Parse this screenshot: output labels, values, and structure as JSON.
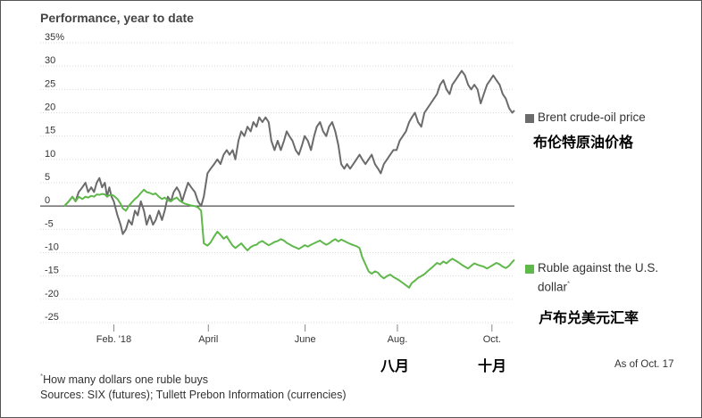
{
  "chart_data": {
    "type": "line",
    "title": "Performance, year to date",
    "ylim": [
      -25,
      35
    ],
    "y_ticks": [
      "35%",
      "30",
      "25",
      "20",
      "15",
      "10",
      "5",
      "0",
      "-5",
      "-10",
      "-15",
      "-20",
      "-25"
    ],
    "y_tick_values": [
      35,
      30,
      25,
      20,
      15,
      10,
      5,
      0,
      -5,
      -10,
      -15,
      -20,
      -25
    ],
    "x_ticks": [
      {
        "label": "Feb. '18",
        "t": 0.11
      },
      {
        "label": "April",
        "t": 0.32
      },
      {
        "label": "June",
        "t": 0.535
      },
      {
        "label": "Aug.",
        "t": 0.74
      },
      {
        "label": "Oct.",
        "t": 0.95
      }
    ],
    "series": [
      {
        "name": "Brent crude-oil price",
        "color": "#6b6b6b",
        "points": [
          [
            0.0,
            0
          ],
          [
            0.01,
            1
          ],
          [
            0.018,
            2
          ],
          [
            0.025,
            1
          ],
          [
            0.032,
            3
          ],
          [
            0.04,
            4
          ],
          [
            0.047,
            5
          ],
          [
            0.053,
            3
          ],
          [
            0.06,
            4
          ],
          [
            0.066,
            3
          ],
          [
            0.072,
            5
          ],
          [
            0.078,
            6
          ],
          [
            0.084,
            4
          ],
          [
            0.09,
            5
          ],
          [
            0.095,
            2
          ],
          [
            0.1,
            4
          ],
          [
            0.105,
            2
          ],
          [
            0.11,
            1
          ],
          [
            0.118,
            -2
          ],
          [
            0.125,
            -4
          ],
          [
            0.13,
            -6
          ],
          [
            0.137,
            -5
          ],
          [
            0.143,
            -3
          ],
          [
            0.15,
            -4
          ],
          [
            0.157,
            -1
          ],
          [
            0.163,
            -2
          ],
          [
            0.17,
            1
          ],
          [
            0.177,
            -1
          ],
          [
            0.183,
            -4
          ],
          [
            0.19,
            -2
          ],
          [
            0.197,
            -4
          ],
          [
            0.203,
            -3
          ],
          [
            0.21,
            -1
          ],
          [
            0.217,
            -3
          ],
          [
            0.223,
            -1
          ],
          [
            0.23,
            2
          ],
          [
            0.237,
            1
          ],
          [
            0.243,
            3
          ],
          [
            0.25,
            4
          ],
          [
            0.256,
            3
          ],
          [
            0.262,
            1
          ],
          [
            0.268,
            3
          ],
          [
            0.275,
            5
          ],
          [
            0.282,
            4
          ],
          [
            0.29,
            3
          ],
          [
            0.297,
            1
          ],
          [
            0.304,
            0
          ],
          [
            0.31,
            2
          ],
          [
            0.318,
            7
          ],
          [
            0.325,
            8
          ],
          [
            0.333,
            9
          ],
          [
            0.34,
            10
          ],
          [
            0.347,
            9
          ],
          [
            0.354,
            11
          ],
          [
            0.361,
            12
          ],
          [
            0.367,
            11
          ],
          [
            0.374,
            12
          ],
          [
            0.38,
            10
          ],
          [
            0.387,
            14
          ],
          [
            0.393,
            16
          ],
          [
            0.4,
            15
          ],
          [
            0.407,
            17
          ],
          [
            0.414,
            16
          ],
          [
            0.42,
            18
          ],
          [
            0.427,
            17
          ],
          [
            0.433,
            19
          ],
          [
            0.44,
            18
          ],
          [
            0.447,
            19
          ],
          [
            0.454,
            18
          ],
          [
            0.46,
            14
          ],
          [
            0.467,
            12
          ],
          [
            0.474,
            14
          ],
          [
            0.481,
            12
          ],
          [
            0.488,
            14
          ],
          [
            0.494,
            16
          ],
          [
            0.5,
            15
          ],
          [
            0.507,
            14
          ],
          [
            0.514,
            12
          ],
          [
            0.521,
            11
          ],
          [
            0.528,
            13
          ],
          [
            0.534,
            15
          ],
          [
            0.541,
            14
          ],
          [
            0.548,
            12
          ],
          [
            0.555,
            15
          ],
          [
            0.561,
            17
          ],
          [
            0.568,
            18
          ],
          [
            0.575,
            16
          ],
          [
            0.582,
            15
          ],
          [
            0.588,
            17
          ],
          [
            0.595,
            18
          ],
          [
            0.602,
            16
          ],
          [
            0.609,
            13
          ],
          [
            0.615,
            9
          ],
          [
            0.622,
            8
          ],
          [
            0.628,
            9
          ],
          [
            0.635,
            8
          ],
          [
            0.642,
            9
          ],
          [
            0.649,
            10
          ],
          [
            0.656,
            11
          ],
          [
            0.662,
            10
          ],
          [
            0.669,
            9
          ],
          [
            0.676,
            10
          ],
          [
            0.683,
            11
          ],
          [
            0.69,
            9
          ],
          [
            0.697,
            8
          ],
          [
            0.703,
            7
          ],
          [
            0.71,
            9
          ],
          [
            0.717,
            10
          ],
          [
            0.724,
            11
          ],
          [
            0.731,
            12
          ],
          [
            0.738,
            12
          ],
          [
            0.745,
            14
          ],
          [
            0.752,
            15
          ],
          [
            0.759,
            16
          ],
          [
            0.766,
            18
          ],
          [
            0.772,
            19
          ],
          [
            0.779,
            20
          ],
          [
            0.786,
            18
          ],
          [
            0.793,
            17
          ],
          [
            0.8,
            20
          ],
          [
            0.807,
            21
          ],
          [
            0.814,
            22
          ],
          [
            0.821,
            23
          ],
          [
            0.828,
            24
          ],
          [
            0.835,
            26
          ],
          [
            0.842,
            27
          ],
          [
            0.849,
            25
          ],
          [
            0.856,
            24
          ],
          [
            0.862,
            26
          ],
          [
            0.869,
            27
          ],
          [
            0.876,
            28
          ],
          [
            0.883,
            29
          ],
          [
            0.89,
            28
          ],
          [
            0.897,
            26
          ],
          [
            0.904,
            25
          ],
          [
            0.911,
            26
          ],
          [
            0.918,
            25
          ],
          [
            0.925,
            22
          ],
          [
            0.932,
            24
          ],
          [
            0.939,
            26
          ],
          [
            0.946,
            27
          ],
          [
            0.953,
            28
          ],
          [
            0.96,
            27
          ],
          [
            0.967,
            26
          ],
          [
            0.974,
            24
          ],
          [
            0.981,
            23
          ],
          [
            0.988,
            21
          ],
          [
            0.995,
            20
          ],
          [
            1.0,
            20.5
          ]
        ]
      },
      {
        "name": "Ruble against the U.S. dollar",
        "color": "#5fb84a",
        "points": [
          [
            0.0,
            0
          ],
          [
            0.01,
            1
          ],
          [
            0.018,
            2
          ],
          [
            0.025,
            1
          ],
          [
            0.032,
            2
          ],
          [
            0.04,
            1.5
          ],
          [
            0.047,
            2
          ],
          [
            0.053,
            1.8
          ],
          [
            0.06,
            2.2
          ],
          [
            0.066,
            2
          ],
          [
            0.072,
            2.5
          ],
          [
            0.078,
            2.4
          ],
          [
            0.084,
            2.6
          ],
          [
            0.09,
            2.5
          ],
          [
            0.095,
            2
          ],
          [
            0.1,
            2.3
          ],
          [
            0.105,
            2.4
          ],
          [
            0.11,
            2.2
          ],
          [
            0.118,
            1.5
          ],
          [
            0.125,
            0.5
          ],
          [
            0.13,
            -0.5
          ],
          [
            0.137,
            -1
          ],
          [
            0.143,
            0
          ],
          [
            0.15,
            0.8
          ],
          [
            0.157,
            1.5
          ],
          [
            0.163,
            2
          ],
          [
            0.17,
            2.8
          ],
          [
            0.177,
            3.5
          ],
          [
            0.183,
            3
          ],
          [
            0.19,
            2.8
          ],
          [
            0.197,
            2.5
          ],
          [
            0.203,
            2.7
          ],
          [
            0.21,
            2
          ],
          [
            0.217,
            1.5
          ],
          [
            0.223,
            1.8
          ],
          [
            0.23,
            1.2
          ],
          [
            0.237,
            1
          ],
          [
            0.243,
            1.5
          ],
          [
            0.25,
            1.8
          ],
          [
            0.256,
            1.2
          ],
          [
            0.262,
            0.8
          ],
          [
            0.268,
            0.5
          ],
          [
            0.275,
            0.3
          ],
          [
            0.282,
            0.1
          ],
          [
            0.29,
            0
          ],
          [
            0.297,
            -0.3
          ],
          [
            0.304,
            -1
          ],
          [
            0.31,
            -8
          ],
          [
            0.318,
            -8.5
          ],
          [
            0.325,
            -7.8
          ],
          [
            0.333,
            -6.5
          ],
          [
            0.34,
            -5.5
          ],
          [
            0.347,
            -6.2
          ],
          [
            0.354,
            -7
          ],
          [
            0.361,
            -6.5
          ],
          [
            0.367,
            -7.5
          ],
          [
            0.374,
            -8.5
          ],
          [
            0.38,
            -9
          ],
          [
            0.387,
            -8.5
          ],
          [
            0.393,
            -8
          ],
          [
            0.4,
            -8.8
          ],
          [
            0.407,
            -9.5
          ],
          [
            0.414,
            -8.8
          ],
          [
            0.42,
            -8.5
          ],
          [
            0.427,
            -8.3
          ],
          [
            0.433,
            -7.8
          ],
          [
            0.44,
            -7.5
          ],
          [
            0.447,
            -8
          ],
          [
            0.454,
            -8.4
          ],
          [
            0.46,
            -8.1
          ],
          [
            0.467,
            -7.7
          ],
          [
            0.474,
            -7.5
          ],
          [
            0.481,
            -7.1
          ],
          [
            0.488,
            -7.4
          ],
          [
            0.494,
            -7.9
          ],
          [
            0.5,
            -8.2
          ],
          [
            0.507,
            -8.6
          ],
          [
            0.514,
            -8.9
          ],
          [
            0.521,
            -9.2
          ],
          [
            0.528,
            -8.8
          ],
          [
            0.534,
            -8.4
          ],
          [
            0.541,
            -8.7
          ],
          [
            0.548,
            -8.3
          ],
          [
            0.555,
            -8
          ],
          [
            0.561,
            -7.7
          ],
          [
            0.568,
            -7.4
          ],
          [
            0.575,
            -7.9
          ],
          [
            0.582,
            -8.3
          ],
          [
            0.588,
            -8
          ],
          [
            0.595,
            -7.5
          ],
          [
            0.602,
            -7.1
          ],
          [
            0.609,
            -7.6
          ],
          [
            0.615,
            -7.2
          ],
          [
            0.622,
            -7.5
          ],
          [
            0.628,
            -7.8
          ],
          [
            0.635,
            -8.1
          ],
          [
            0.642,
            -8.4
          ],
          [
            0.649,
            -8.6
          ],
          [
            0.656,
            -9
          ],
          [
            0.662,
            -11
          ],
          [
            0.669,
            -12.5
          ],
          [
            0.676,
            -14
          ],
          [
            0.683,
            -14.5
          ],
          [
            0.69,
            -14
          ],
          [
            0.697,
            -14.3
          ],
          [
            0.703,
            -15
          ],
          [
            0.71,
            -15.5
          ],
          [
            0.717,
            -15
          ],
          [
            0.724,
            -14.7
          ],
          [
            0.731,
            -15.2
          ],
          [
            0.738,
            -15.6
          ],
          [
            0.745,
            -16
          ],
          [
            0.752,
            -16.5
          ],
          [
            0.759,
            -17
          ],
          [
            0.766,
            -17.5
          ],
          [
            0.772,
            -16.5
          ],
          [
            0.779,
            -16
          ],
          [
            0.786,
            -15.4
          ],
          [
            0.793,
            -15
          ],
          [
            0.8,
            -14.6
          ],
          [
            0.807,
            -14
          ],
          [
            0.814,
            -13.4
          ],
          [
            0.821,
            -12.8
          ],
          [
            0.828,
            -12.2
          ],
          [
            0.835,
            -12.5
          ],
          [
            0.842,
            -11.9
          ],
          [
            0.849,
            -12.3
          ],
          [
            0.856,
            -11.7
          ],
          [
            0.862,
            -11.3
          ],
          [
            0.869,
            -11.7
          ],
          [
            0.876,
            -12.1
          ],
          [
            0.883,
            -12.6
          ],
          [
            0.89,
            -13
          ],
          [
            0.897,
            -13.4
          ],
          [
            0.904,
            -12.8
          ],
          [
            0.911,
            -12.3
          ],
          [
            0.918,
            -12.6
          ],
          [
            0.925,
            -12.8
          ],
          [
            0.932,
            -13
          ],
          [
            0.939,
            -13.4
          ],
          [
            0.946,
            -13
          ],
          [
            0.953,
            -12.6
          ],
          [
            0.96,
            -12.2
          ],
          [
            0.967,
            -12.5
          ],
          [
            0.974,
            -13
          ],
          [
            0.981,
            -13.3
          ],
          [
            0.988,
            -12.8
          ],
          [
            0.995,
            -12
          ],
          [
            1.0,
            -11.5
          ]
        ]
      }
    ]
  },
  "legend": {
    "brent": {
      "label": "Brent crude-oil price",
      "cn": "布伦特原油价格"
    },
    "ruble": {
      "label_line1": "Ruble against the U.S.",
      "label_line2": "dollar",
      "marker": "*",
      "cn": "卢布兑美元汇率"
    }
  },
  "annotations": {
    "aug_cn": "八月",
    "oct_cn": "十月",
    "as_of": "As of Oct. 17"
  },
  "footnotes": {
    "note_marker": "*",
    "note": "How many dollars one ruble buys",
    "sources": "Sources: SIX (futures); Tullett Prebon Information (currencies)"
  }
}
